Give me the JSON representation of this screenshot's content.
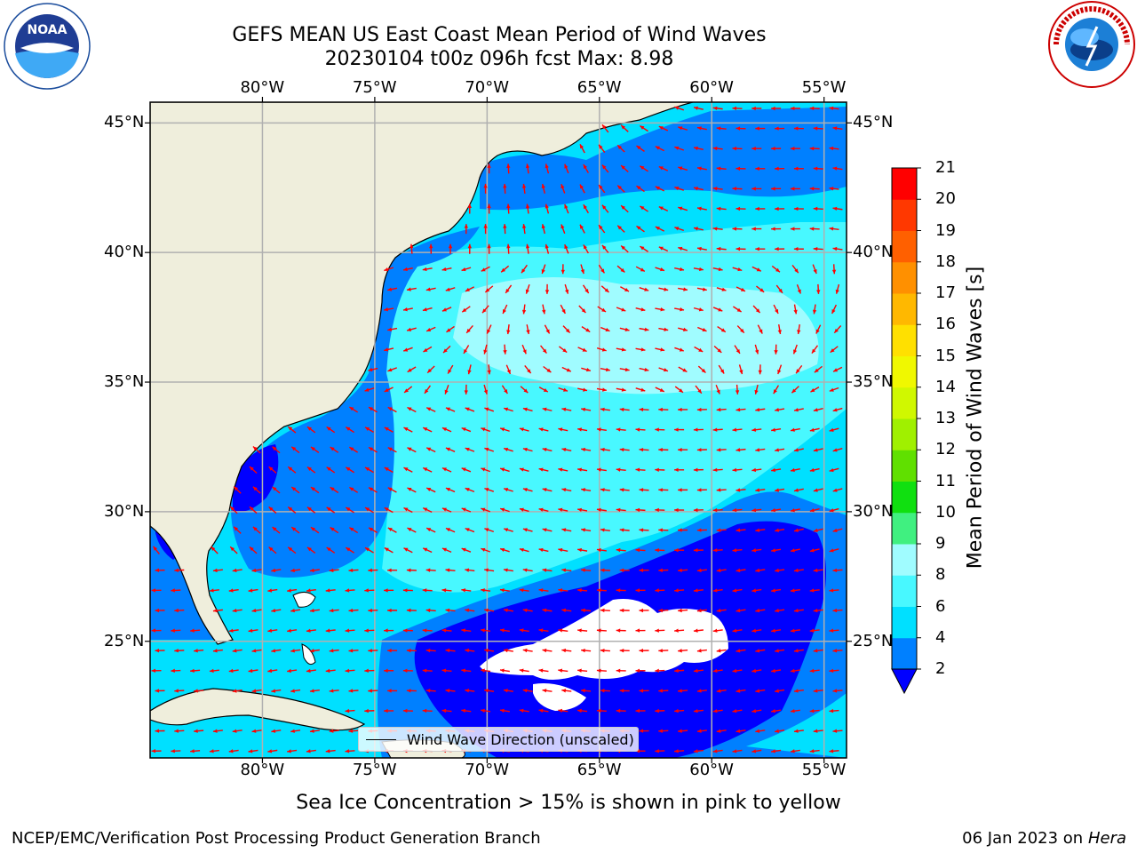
{
  "title": {
    "line1": "GEFS MEAN US East Coast Mean Period of Wind Waves",
    "line2": "20230104 t00z 096h fcst   Max: 8.98"
  },
  "logos": {
    "left": {
      "name": "NOAA",
      "text": "NOAA",
      "ring_text": "NATIONAL OCEANIC AND ATMOSPHERIC ADMINISTRATION · U.S. DEPARTMENT OF COMMERCE"
    },
    "right": {
      "name": "National Weather Service",
      "ring_text": "NATIONAL WEATHER SERVICE"
    }
  },
  "map": {
    "lon_range": [
      -85,
      -54
    ],
    "lat_range": [
      20.5,
      45.8
    ],
    "lon_ticks": [
      {
        "value": -80,
        "label": "80°W"
      },
      {
        "value": -75,
        "label": "75°W"
      },
      {
        "value": -70,
        "label": "70°W"
      },
      {
        "value": -65,
        "label": "65°W"
      },
      {
        "value": -60,
        "label": "60°W"
      },
      {
        "value": -55,
        "label": "55°W"
      }
    ],
    "lat_ticks": [
      {
        "value": 45,
        "label": "45°N"
      },
      {
        "value": 40,
        "label": "40°N"
      },
      {
        "value": 35,
        "label": "35°N"
      },
      {
        "value": 30,
        "label": "30°N"
      },
      {
        "value": 25,
        "label": "25°N"
      }
    ],
    "land_color": "#efeedc",
    "grid_color": "#b0b0b0",
    "arrow_color": "#ff0000"
  },
  "colorbar": {
    "label": "Mean Period of Wind Waves [s]",
    "levels": [
      "2",
      "4",
      "6",
      "8",
      "9",
      "10",
      "11",
      "12",
      "13",
      "14",
      "15",
      "16",
      "17",
      "18",
      "19",
      "20",
      "21"
    ],
    "colors": [
      "#0080ff",
      "#00e0ff",
      "#48f8ff",
      "#a0fcff",
      "#40f080",
      "#10e010",
      "#60e000",
      "#a0f000",
      "#d0f800",
      "#f0f800",
      "#ffe000",
      "#ffb800",
      "#ff9000",
      "#ff6000",
      "#ff3800",
      "#ff0000"
    ],
    "under_color": "#0000ff"
  },
  "legend": {
    "label": "Wind Wave Direction (unscaled)"
  },
  "ice_note": "Sea Ice Concentration > 15% is shown in pink to yellow",
  "footer": {
    "left": "NCEP/EMC/Verification Post Processing Product Generation Branch",
    "right_date": "06 Jan 2023 on ",
    "right_machine": "Hera"
  }
}
